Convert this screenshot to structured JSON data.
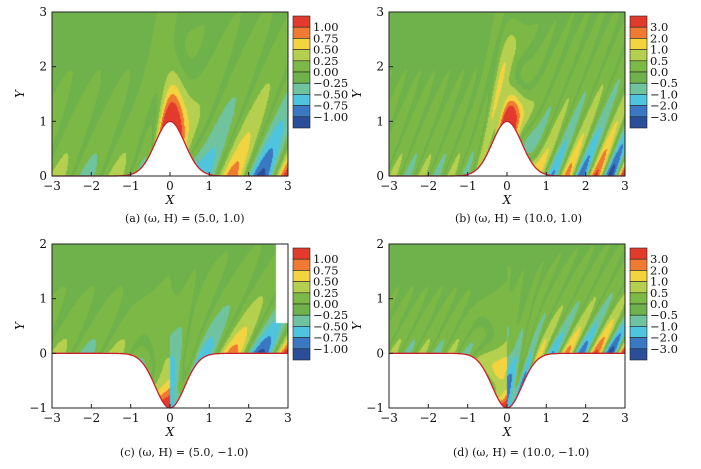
{
  "colors": [
    "#e23a2c",
    "#ef7a31",
    "#f3d33f",
    "#b5d04f",
    "#7cb846",
    "#6fb14a",
    "#6fc39e",
    "#4fc4de",
    "#3a78c3",
    "#2a4e98"
  ],
  "chart_data": [
    {
      "type": "heatmap",
      "id": "a",
      "caption": "(a) (ω, H) = (5.0, 1.0)",
      "xlabel": "X",
      "ylabel": "Y",
      "xlim": [
        -3,
        3
      ],
      "ylim": [
        0,
        3
      ],
      "xticks": [
        "−3",
        "−2",
        "−1",
        "0",
        "1",
        "2",
        "3"
      ],
      "yticks": [
        "0",
        "1",
        "2",
        "3"
      ],
      "levels": [
        "1.00",
        "0.75",
        "0.50",
        "0.25",
        "0.00",
        "−0.25",
        "−0.50",
        "−0.75",
        "−1.00"
      ],
      "omega": 5.0,
      "H": 1.0
    },
    {
      "type": "heatmap",
      "id": "b",
      "caption": "(b) (ω, H) = (10.0, 1.0)",
      "xlabel": "X",
      "ylabel": "Y",
      "xlim": [
        -3,
        3
      ],
      "ylim": [
        0,
        3
      ],
      "xticks": [
        "−3",
        "−2",
        "−1",
        "0",
        "1",
        "2",
        "3"
      ],
      "yticks": [
        "0",
        "1",
        "2",
        "3"
      ],
      "levels": [
        "3.0",
        "2.0",
        "1.0",
        "0.5",
        "0.0",
        "−0.5",
        "−1.0",
        "−2.0",
        "−3.0"
      ],
      "omega": 10.0,
      "H": 1.0
    },
    {
      "type": "heatmap",
      "id": "c",
      "caption": "(c) (ω, H) = (5.0, −1.0)",
      "xlabel": "X",
      "ylabel": "Y",
      "xlim": [
        -3,
        3
      ],
      "ylim": [
        -1,
        2
      ],
      "xticks": [
        "−3",
        "−2",
        "−1",
        "0",
        "1",
        "2",
        "3"
      ],
      "yticks": [
        "−1",
        "0",
        "1",
        "2"
      ],
      "levels": [
        "1.00",
        "0.75",
        "0.50",
        "0.25",
        "0.00",
        "−0.25",
        "−0.50",
        "−0.75",
        "−1.00"
      ],
      "omega": 5.0,
      "H": -1.0
    },
    {
      "type": "heatmap",
      "id": "d",
      "caption": "(d) (ω, H) = (10.0, −1.0)",
      "xlabel": "X",
      "ylabel": "Y",
      "xlim": [
        -3,
        3
      ],
      "ylim": [
        -1,
        2
      ],
      "xticks": [
        "−3",
        "−2",
        "−1",
        "0",
        "1",
        "2",
        "3"
      ],
      "yticks": [
        "−1",
        "0",
        "1",
        "2"
      ],
      "levels": [
        "3.0",
        "2.0",
        "1.0",
        "0.5",
        "0.0",
        "−0.5",
        "−1.0",
        "−2.0",
        "−3.0"
      ],
      "omega": 10.0,
      "H": -1.0
    }
  ]
}
